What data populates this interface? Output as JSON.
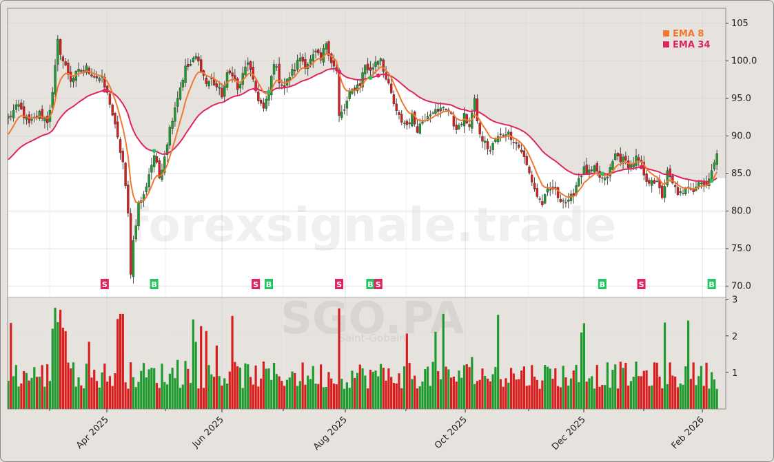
{
  "chart_data": {
    "type": "candlestick",
    "title": "SGO.PA",
    "subtitle": "Saint-Gobain",
    "watermark": "forexsignale.trade",
    "x_ticks": [
      "Apr 2025",
      "Jun 2025",
      "Aug 2025",
      "Oct 2025",
      "Dec 2025",
      "Feb 2026"
    ],
    "price_axis": {
      "ticks": [
        "70.0",
        "75.0",
        "80.0",
        "85.0",
        "90.0",
        "95.0",
        "100.0",
        "105"
      ],
      "ylim": [
        68.5,
        107
      ]
    },
    "volume_axis": {
      "ticks": [
        "1",
        "2",
        "3"
      ],
      "ylim": [
        0,
        3.05
      ]
    },
    "legend": [
      {
        "label": "EMA 8",
        "color": "#f07830"
      },
      {
        "label": "EMA 34",
        "color": "#e0245e"
      }
    ],
    "colors": {
      "up": "#1e9b2e",
      "down": "#d81e1e",
      "buy": "#22c55e",
      "sell": "#e0245e"
    },
    "close_anchors": [
      [
        0,
        92.5
      ],
      [
        4,
        94.0
      ],
      [
        8,
        91.5
      ],
      [
        12,
        93.0
      ],
      [
        15,
        92.0
      ],
      [
        17,
        95.5
      ],
      [
        19,
        102.5
      ],
      [
        21,
        100.0
      ],
      [
        24,
        97.5
      ],
      [
        27,
        98.5
      ],
      [
        30,
        99.0
      ],
      [
        33,
        98.0
      ],
      [
        36,
        97.5
      ],
      [
        39,
        94.5
      ],
      [
        42,
        89.5
      ],
      [
        44,
        86.5
      ],
      [
        46,
        79.5
      ],
      [
        47,
        72.0
      ],
      [
        48,
        76.0
      ],
      [
        50,
        81.0
      ],
      [
        52,
        82.0
      ],
      [
        54,
        85.0
      ],
      [
        56,
        87.5
      ],
      [
        58,
        84.5
      ],
      [
        60,
        87.5
      ],
      [
        62,
        91.0
      ],
      [
        64,
        94.0
      ],
      [
        66,
        96.5
      ],
      [
        68,
        99.0
      ],
      [
        70,
        99.5
      ],
      [
        72,
        100.5
      ],
      [
        74,
        99.0
      ],
      [
        76,
        97.0
      ],
      [
        78,
        97.5
      ],
      [
        80,
        96.5
      ],
      [
        82,
        95.5
      ],
      [
        84,
        98.0
      ],
      [
        86,
        98.5
      ],
      [
        88,
        96.0
      ],
      [
        90,
        98.0
      ],
      [
        92,
        100.0
      ],
      [
        94,
        97.0
      ],
      [
        96,
        95.0
      ],
      [
        98,
        93.5
      ],
      [
        100,
        95.5
      ],
      [
        102,
        100.0
      ],
      [
        104,
        97.5
      ],
      [
        106,
        96.5
      ],
      [
        108,
        98.0
      ],
      [
        110,
        99.0
      ],
      [
        112,
        100.5
      ],
      [
        114,
        99.5
      ],
      [
        116,
        100.0
      ],
      [
        118,
        101.0
      ],
      [
        120,
        100.0
      ],
      [
        122,
        102.5
      ],
      [
        124,
        100.0
      ],
      [
        126,
        98.5
      ],
      [
        127,
        92.5
      ],
      [
        129,
        93.5
      ],
      [
        131,
        95.5
      ],
      [
        133,
        96.5
      ],
      [
        135,
        97.0
      ],
      [
        137,
        99.5
      ],
      [
        139,
        98.5
      ],
      [
        141,
        100.0
      ],
      [
        143,
        100.5
      ],
      [
        145,
        97.5
      ],
      [
        147,
        95.5
      ],
      [
        149,
        93.0
      ],
      [
        151,
        92.0
      ],
      [
        153,
        91.5
      ],
      [
        155,
        92.5
      ],
      [
        157,
        91.0
      ],
      [
        159,
        92.0
      ],
      [
        161,
        93.0
      ],
      [
        163,
        93.5
      ],
      [
        165,
        93.0
      ],
      [
        167,
        94.0
      ],
      [
        169,
        93.5
      ],
      [
        171,
        91.5
      ],
      [
        173,
        91.0
      ],
      [
        175,
        92.5
      ],
      [
        177,
        91.5
      ],
      [
        179,
        94.5
      ],
      [
        181,
        90.0
      ],
      [
        183,
        89.0
      ],
      [
        185,
        88.0
      ],
      [
        187,
        89.5
      ],
      [
        189,
        90.0
      ],
      [
        191,
        90.5
      ],
      [
        193,
        90.0
      ],
      [
        195,
        89.0
      ],
      [
        197,
        88.0
      ],
      [
        199,
        86.0
      ],
      [
        201,
        84.0
      ],
      [
        203,
        82.0
      ],
      [
        205,
        81.0
      ],
      [
        207,
        82.5
      ],
      [
        209,
        83.0
      ],
      [
        211,
        82.0
      ],
      [
        213,
        81.5
      ],
      [
        215,
        81.0
      ],
      [
        217,
        82.5
      ],
      [
        219,
        84.5
      ],
      [
        221,
        85.5
      ],
      [
        223,
        85.0
      ],
      [
        225,
        85.5
      ],
      [
        227,
        84.5
      ],
      [
        229,
        84.0
      ],
      [
        231,
        85.5
      ],
      [
        233,
        87.5
      ],
      [
        235,
        87.0
      ],
      [
        237,
        86.5
      ],
      [
        239,
        86.0
      ],
      [
        241,
        87.0
      ],
      [
        243,
        86.0
      ],
      [
        245,
        83.5
      ],
      [
        247,
        84.5
      ],
      [
        249,
        83.5
      ],
      [
        251,
        82.0
      ],
      [
        253,
        85.0
      ],
      [
        255,
        83.5
      ],
      [
        257,
        82.5
      ],
      [
        259,
        82.0
      ],
      [
        261,
        83.5
      ],
      [
        263,
        83.0
      ],
      [
        265,
        84.0
      ],
      [
        267,
        83.5
      ],
      [
        269,
        84.5
      ],
      [
        271,
        86.0
      ],
      [
        272,
        88.0
      ]
    ],
    "signals": [
      {
        "label": "S",
        "type": "sell",
        "bar": 37
      },
      {
        "label": "B",
        "type": "buy",
        "bar": 56
      },
      {
        "label": "S",
        "type": "sell",
        "bar": 95
      },
      {
        "label": "B",
        "type": "buy",
        "bar": 100
      },
      {
        "label": "S",
        "type": "sell",
        "bar": 127
      },
      {
        "label": "B",
        "type": "buy",
        "bar": 139
      },
      {
        "label": "S",
        "type": "sell",
        "bar": 142
      },
      {
        "label": "B",
        "type": "buy",
        "bar": 228
      },
      {
        "label": "S",
        "type": "sell",
        "bar": 243
      },
      {
        "label": "B",
        "type": "buy",
        "bar": 270
      }
    ]
  }
}
